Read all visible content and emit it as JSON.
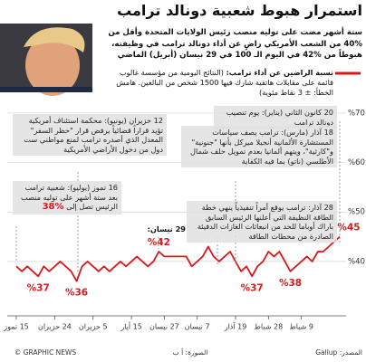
{
  "chart_data": {
    "type": "line",
    "title": "استمرار هبوط شعبية دونالد ترامب",
    "subtitle": "ستة أشهر مضت على توليه منصب رئيس الولايات المتحدة وأقل من %40 من الشعب الأمريكي راضٍ عن أداء دونالد ترامب في وظيفته، هبوطاً من %42 في اليوم الـ 100 في 29 نيسان (أبريل) الماضي",
    "legend_title": "نسبة الراضين عن أداء ترامب:",
    "legend_note": "(النتائج اليومية من مؤسسة غالوب قائمة على مقابلات هاتفية شارك فيها 1500 شخص من البالغين. هامش الخطأ: ± 3 نقاط مئوية)",
    "annotations": {
      "jan20": "20 كانون الثاني (يناير): يوم تنصيب دونالد ترامب",
      "mar18": "18 آذار (مارس): ترامب يصف سياسات المستشارة الألمانية أنجيلا ميركل بأنها \"جنونية\" و\"كارثية\"، ويتهم ألمانيا بعدم تمويل حلف شمال الأطلسي (ناتو) بما فيه الكفاية",
      "mar28": "28 آذار: ترامب يوقع أمراً تنفيذياً ينهي خطة الطاقة النظيفة التي أعلنها الرئيس السابق باراك أوباما للحد من انبعاثات الغازات الدفيئة الصادرة من محطات الطاقة",
      "apr29": "29 نيسان:",
      "jun12": "12 حزيران (يونيو): محكمة استئناف أمريكية تؤيد قراراً قضائياً يرفض قرار \"حظر السفر\" المعدل الذي أصدره ترامب لمنع مواطني ست دول من دخول الأراضي الأمريكية",
      "jul16": "16 تموز (يوليو): شعبية ترامب بعد ستة أشهر على توليه منصب الرئيس تصل إلى",
      "jul16_value": "%38"
    },
    "categories": [
      null,
      null,
      null,
      null,
      null,
      null,
      null,
      "9 شباط",
      null,
      null,
      null,
      null,
      null,
      "28 شباط",
      null,
      null,
      null,
      null,
      null,
      "19 آذار",
      null,
      null,
      null,
      null,
      null,
      null,
      "7 نيسان",
      null,
      null,
      null,
      null,
      null,
      "27 نيسان",
      null,
      null,
      null,
      null,
      null,
      "15 أيار",
      null,
      null,
      null,
      null,
      null,
      null,
      "5 حزيران",
      null,
      null,
      null,
      null,
      null,
      null,
      "24 حزيران",
      null,
      null,
      null,
      null,
      null,
      null,
      "15 تموز"
    ],
    "series": [
      {
        "name": "نسبة الراضين عن أداء ترامب",
        "color": "#d7191c",
        "values": [
          45,
          44,
          43,
          42,
          42,
          40,
          41,
          40,
          39,
          38,
          40,
          42,
          41,
          42,
          40,
          39,
          37,
          39,
          38,
          40,
          42,
          41,
          40,
          41,
          43,
          41,
          40,
          39,
          41,
          41,
          41,
          41,
          41,
          42,
          40,
          39,
          40,
          41,
          40,
          39,
          40,
          39,
          38,
          39,
          38,
          39,
          40,
          39,
          36,
          38,
          39,
          40,
          39,
          38,
          39,
          37,
          38,
          39,
          38,
          39
        ],
        "value_labels": [
          "%45",
          null,
          null,
          null,
          null,
          null,
          null,
          null,
          null,
          "%38",
          null,
          null,
          null,
          null,
          null,
          null,
          "%37",
          null,
          null,
          null,
          null,
          null,
          null,
          null,
          null,
          null,
          null,
          null,
          null,
          null,
          null,
          null,
          null,
          "%42",
          null,
          null,
          null,
          null,
          null,
          null,
          null,
          null,
          null,
          null,
          null,
          null,
          null,
          null,
          "%36",
          null,
          null,
          null,
          null,
          null,
          null,
          "%37",
          null,
          null,
          null,
          null
        ]
      }
    ],
    "ylim": [
      29,
      72
    ],
    "yticks": [
      {
        "value": 40,
        "label": "%40"
      },
      {
        "value": 50,
        "label": "%50"
      },
      {
        "value": 60,
        "label": "%60"
      },
      {
        "value": 70,
        "label": "%70"
      }
    ],
    "grid": true,
    "footer": {
      "credit": "© GRAPHIC NEWS",
      "photo": "الصورة: أ ب",
      "source": "المصدر: Gallup"
    }
  }
}
